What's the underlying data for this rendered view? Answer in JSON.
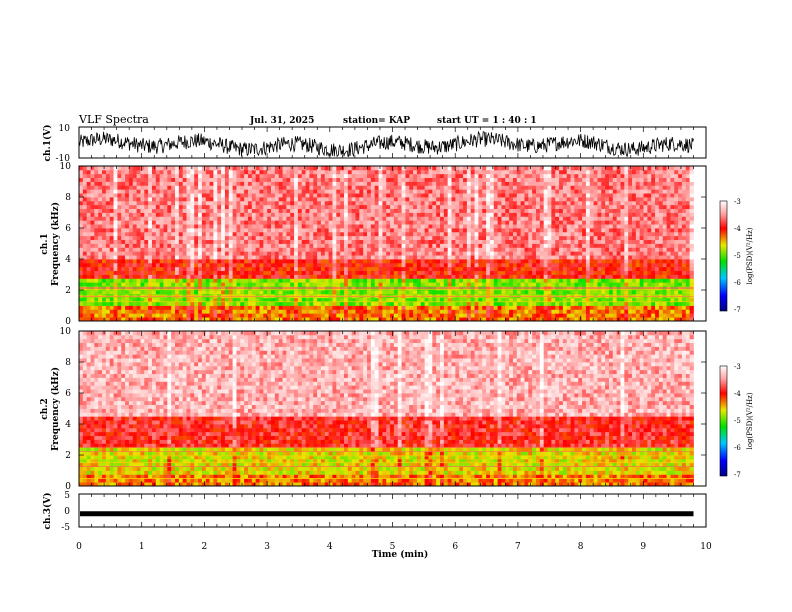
{
  "header": {
    "title": "VLF Spectra",
    "date": "Jul. 31, 2025",
    "station": "station= KAP",
    "start_ut": "start UT =  1 : 40 : 1"
  },
  "chart_data": [
    {
      "type": "line",
      "name": "ch1-waveform",
      "ylabel": "ch.1(V)",
      "ylim": [
        -10,
        10
      ],
      "ytick_labels": [
        "10",
        "-10"
      ],
      "description_values": "noisy voltage trace roughly between -8 and +6 V"
    },
    {
      "type": "heatmap",
      "name": "ch1-spectrogram",
      "ylabel": "ch.1\nFrequency (kHz)",
      "ylabel_lines": [
        "ch.1",
        "Frequency (kHz)"
      ],
      "ylim": [
        0,
        10
      ],
      "ytick_labels": [
        "0",
        "2",
        "4",
        "6",
        "8",
        "10"
      ],
      "colorbar": {
        "label": "log(PSD)(V²/Hz)",
        "range": [
          -7,
          -3
        ],
        "tick_labels": [
          "-3",
          "-4",
          "-5",
          "-6",
          "-7"
        ]
      },
      "bands": [
        {
          "f_low_khz": 0.0,
          "f_high_khz": 1.0,
          "level": -4.3
        },
        {
          "f_low_khz": 1.0,
          "f_high_khz": 2.8,
          "level": -4.9
        },
        {
          "f_low_khz": 2.8,
          "f_high_khz": 4.0,
          "level": -4.0
        },
        {
          "f_low_khz": 4.0,
          "f_high_khz": 10.0,
          "level": -3.6
        }
      ]
    },
    {
      "type": "heatmap",
      "name": "ch2-spectrogram",
      "ylabel": "ch.2\nFrequency (kHz)",
      "ylabel_lines": [
        "ch.2",
        "Frequency (kHz)"
      ],
      "ylim": [
        0,
        10
      ],
      "ytick_labels": [
        "0",
        "2",
        "4",
        "6",
        "8",
        "10"
      ],
      "colorbar": {
        "label": "log(PSD)(V²/Hz)",
        "range": [
          -7,
          -3
        ],
        "tick_labels": [
          "-3",
          "-4",
          "-5",
          "-6",
          "-7"
        ]
      },
      "bands": [
        {
          "f_low_khz": 0.0,
          "f_high_khz": 0.8,
          "level": -4.3
        },
        {
          "f_low_khz": 0.8,
          "f_high_khz": 2.6,
          "level": -4.6
        },
        {
          "f_low_khz": 2.6,
          "f_high_khz": 4.5,
          "level": -3.9
        },
        {
          "f_low_khz": 4.5,
          "f_high_khz": 10.0,
          "level": -3.4
        }
      ]
    },
    {
      "type": "line",
      "name": "ch3-waveform",
      "ylabel": "ch.3(V)",
      "ylim": [
        -5,
        5
      ],
      "ytick_labels": [
        "5",
        "0",
        "-5"
      ],
      "constant_value": -1
    }
  ],
  "x_axis": {
    "label": "Time (min)",
    "range": [
      0,
      10
    ],
    "data_extent": 9.8,
    "tick_labels": [
      "0",
      "1",
      "2",
      "3",
      "4",
      "5",
      "6",
      "7",
      "8",
      "9",
      "10"
    ]
  }
}
